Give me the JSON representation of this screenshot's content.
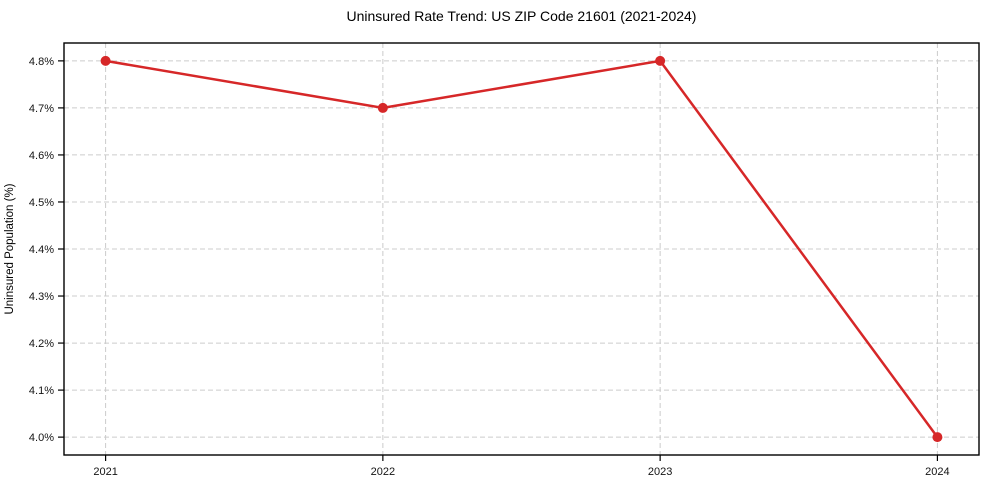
{
  "chart_data": {
    "type": "line",
    "title": "Uninsured Rate Trend: US ZIP Code 21601 (2021-2024)",
    "xlabel": "",
    "ylabel": "Uninsured Population (%)",
    "x": [
      2021,
      2022,
      2023,
      2024
    ],
    "xtick_labels": [
      "2021",
      "2022",
      "2023",
      "2024"
    ],
    "series": [
      {
        "name": "Uninsured rate",
        "values": [
          4.8,
          4.7,
          4.8,
          4.0
        ],
        "color": "#d62728",
        "marker": "circle",
        "line_width": 2.5,
        "marker_radius": 5
      }
    ],
    "ytick_values": [
      4.0,
      4.1,
      4.2,
      4.3,
      4.4,
      4.5,
      4.6,
      4.7,
      4.8
    ],
    "ytick_labels": [
      "4.0%",
      "4.1%",
      "4.2%",
      "4.3%",
      "4.4%",
      "4.5%",
      "4.6%",
      "4.7%",
      "4.8%"
    ],
    "xlim": [
      2020.85,
      2024.15
    ],
    "ylim": [
      3.962,
      4.838
    ],
    "grid": true,
    "grid_style": "dashed",
    "grid_color": "#cccccc",
    "spine_color": "#000000",
    "tick_color": "#000000",
    "background": "#ffffff",
    "legend": "none"
  }
}
